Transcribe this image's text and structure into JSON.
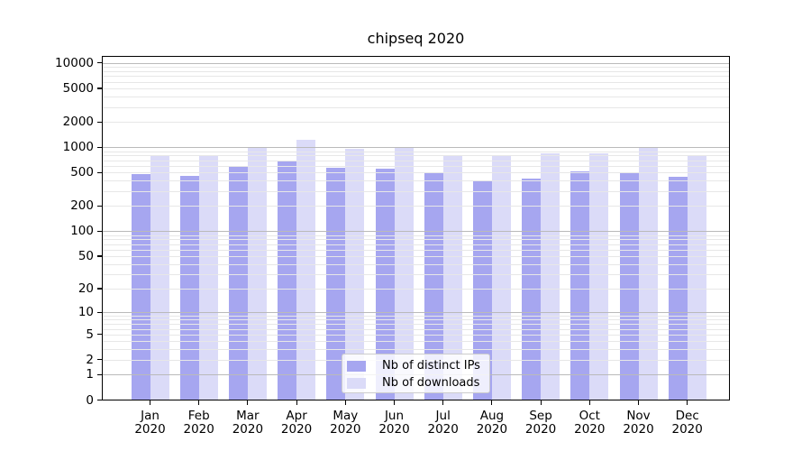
{
  "chart_data": {
    "type": "bar",
    "title": "chipseq 2020",
    "categories": [
      "Jan 2020",
      "Feb 2020",
      "Mar 2020",
      "Apr 2020",
      "May 2020",
      "Jun 2020",
      "Jul 2020",
      "Aug 2020",
      "Sep 2020",
      "Oct 2020",
      "Nov 2020",
      "Dec 2020"
    ],
    "month_labels": [
      "Jan",
      "Feb",
      "Mar",
      "Apr",
      "May",
      "Jun",
      "Jul",
      "Aug",
      "Sep",
      "Oct",
      "Nov",
      "Dec"
    ],
    "year_label": "2020",
    "series": [
      {
        "name": "Nb of distinct IPs",
        "color": "#a6a6f0",
        "values": [
          470,
          445,
          580,
          680,
          560,
          540,
          480,
          395,
          410,
          505,
          495,
          435
        ]
      },
      {
        "name": "Nb of downloads",
        "color": "#dbdbf8",
        "values": [
          780,
          790,
          970,
          1200,
          930,
          950,
          780,
          780,
          830,
          820,
          960,
          760
        ]
      }
    ],
    "yscale": "log1p",
    "ylim": [
      0,
      12000
    ],
    "y_ticks": [
      0,
      1,
      2,
      5,
      10,
      20,
      50,
      100,
      200,
      500,
      1000,
      2000,
      5000,
      10000
    ],
    "grid": "both",
    "grid_major_values": [
      1,
      10,
      100,
      1000,
      10000
    ],
    "legend_position": "lower center",
    "xlabel": "",
    "ylabel": ""
  },
  "legend": {
    "items": [
      "Nb of distinct IPs",
      "Nb of downloads"
    ]
  },
  "colors": {
    "background": "#ffffff",
    "axis": "#000000",
    "tick_label": "#000000",
    "grid_major": "#bababa",
    "grid_minor": "#e7e7e7",
    "bar_distinct_ips": "#a6a6f0",
    "bar_downloads": "#dbdbf8",
    "legend_border": "#cccccc"
  }
}
